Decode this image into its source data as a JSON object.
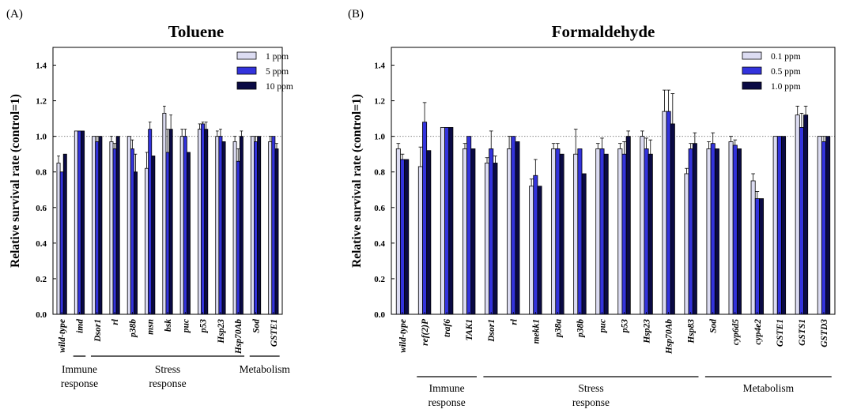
{
  "panels": [
    {
      "label": "(A)",
      "title": "Toluene"
    },
    {
      "label": "(B)",
      "title": "Formaldehyde"
    }
  ],
  "colors": {
    "low": "#dcdcf2",
    "mid": "#3333dd",
    "high": "#0a0a44",
    "edge": "#000000",
    "ref_line": "#888888"
  },
  "chart_data": [
    {
      "type": "bar",
      "title": "Toluene",
      "xlabel": "",
      "ylabel": "Relative survival rate (control=1)",
      "ylim": [
        0,
        1.5
      ],
      "yticks": [
        "0.0",
        "0.2",
        "0.4",
        "0.6",
        "0.8",
        "1.0",
        "1.2",
        "1.4"
      ],
      "reference_line": 1.0,
      "legend_position": "top-right",
      "categories": [
        "wild-type",
        "imd",
        "Dsor1",
        "rl",
        "p38b",
        "msn",
        "bsk",
        "puc",
        "p53",
        "Hsp23",
        "Hsp70Ab",
        "Sod",
        "GSTE1"
      ],
      "series": [
        {
          "name": "1 ppm",
          "values": [
            0.85,
            1.03,
            1.0,
            0.97,
            1.0,
            0.82,
            1.13,
            1.0,
            1.04,
            1.0,
            0.97,
            1.0,
            0.97
          ],
          "errors": [
            0.04,
            0.0,
            0.0,
            0.03,
            0.0,
            0.09,
            0.04,
            0.04,
            0.03,
            0.03,
            0.03,
            0.0,
            0.03
          ]
        },
        {
          "name": "5 ppm",
          "values": [
            0.8,
            1.03,
            0.97,
            0.93,
            0.93,
            1.04,
            0.91,
            1.0,
            1.07,
            1.0,
            0.86,
            0.97,
            1.0
          ],
          "errors": [
            0.0,
            0.0,
            0.03,
            0.03,
            0.05,
            0.04,
            0.13,
            0.04,
            0.01,
            0.04,
            0.07,
            0.03,
            0.0
          ]
        },
        {
          "name": "10 ppm",
          "values": [
            0.9,
            1.03,
            1.0,
            1.0,
            0.8,
            0.89,
            1.04,
            0.91,
            1.04,
            0.97,
            1.0,
            1.0,
            0.93
          ],
          "errors": [
            0.0,
            0.0,
            0.0,
            0.0,
            0.1,
            0.0,
            0.08,
            0.0,
            0.04,
            0.0,
            0.03,
            0.0,
            0.03
          ]
        }
      ],
      "groups": [
        {
          "line1": "Immune",
          "line2": "response",
          "from": 1,
          "to": 1
        },
        {
          "line1": "Stress",
          "line2": "response",
          "from": 2,
          "to": 10
        },
        {
          "line1": "Metabolism",
          "line2": "",
          "from": 11,
          "to": 12
        }
      ]
    },
    {
      "type": "bar",
      "title": "Formaldehyde",
      "xlabel": "",
      "ylabel": "Relative survival rate (control=1)",
      "ylim": [
        0,
        1.5
      ],
      "yticks": [
        "0.0",
        "0.2",
        "0.4",
        "0.6",
        "0.8",
        "1.0",
        "1.2",
        "1.4"
      ],
      "reference_line": 1.0,
      "legend_position": "top-right",
      "categories": [
        "wild-type",
        "ref(2)P",
        "traf6",
        "TAK1",
        "Dsor1",
        "rl",
        "mekk1",
        "p38a",
        "p38b",
        "puc",
        "p53",
        "Hsp23",
        "Hsp70Ab",
        "Hsp83",
        "Sod",
        "cyp6d5",
        "cyp4e2",
        "GSTE1",
        "GSTS1",
        "GSTD3"
      ],
      "series": [
        {
          "name": "0.1 ppm",
          "values": [
            0.93,
            0.83,
            1.05,
            0.93,
            0.85,
            0.93,
            0.72,
            0.93,
            0.9,
            0.93,
            0.93,
            1.0,
            1.14,
            0.79,
            0.93,
            0.97,
            0.75,
            1.0,
            1.12,
            1.0
          ],
          "errors": [
            0.03,
            0.11,
            0.0,
            0.03,
            0.03,
            0.07,
            0.04,
            0.03,
            0.14,
            0.03,
            0.03,
            0.03,
            0.12,
            0.03,
            0.04,
            0.03,
            0.04,
            0.0,
            0.05,
            0.0
          ]
        },
        {
          "name": "0.5 ppm",
          "values": [
            0.87,
            1.08,
            1.05,
            1.0,
            0.93,
            1.0,
            0.78,
            0.93,
            0.93,
            0.93,
            0.9,
            0.93,
            1.14,
            0.93,
            0.96,
            0.95,
            0.65,
            1.0,
            1.05,
            0.97
          ],
          "errors": [
            0.03,
            0.11,
            0.0,
            0.0,
            0.1,
            0.0,
            0.09,
            0.03,
            0.0,
            0.06,
            0.07,
            0.06,
            0.12,
            0.03,
            0.06,
            0.03,
            0.04,
            0.0,
            0.08,
            0.03
          ]
        },
        {
          "name": "1.0 ppm",
          "values": [
            0.87,
            0.92,
            1.05,
            0.93,
            0.85,
            0.97,
            0.72,
            0.9,
            0.79,
            0.9,
            1.0,
            0.9,
            1.07,
            0.96,
            0.93,
            0.93,
            0.65,
            1.0,
            1.12,
            1.0
          ],
          "errors": [
            0.0,
            0.0,
            0.0,
            0.0,
            0.04,
            0.0,
            0.0,
            0.0,
            0.0,
            0.0,
            0.03,
            0.08,
            0.17,
            0.06,
            0.0,
            0.0,
            0.0,
            0.0,
            0.05,
            0.0
          ]
        }
      ],
      "groups": [
        {
          "line1": "Immune",
          "line2": "response",
          "from": 1,
          "to": 3
        },
        {
          "line1": "Stress",
          "line2": "response",
          "from": 4,
          "to": 13
        },
        {
          "line1": "Metabolism",
          "line2": "",
          "from": 14,
          "to": 19
        }
      ]
    }
  ]
}
